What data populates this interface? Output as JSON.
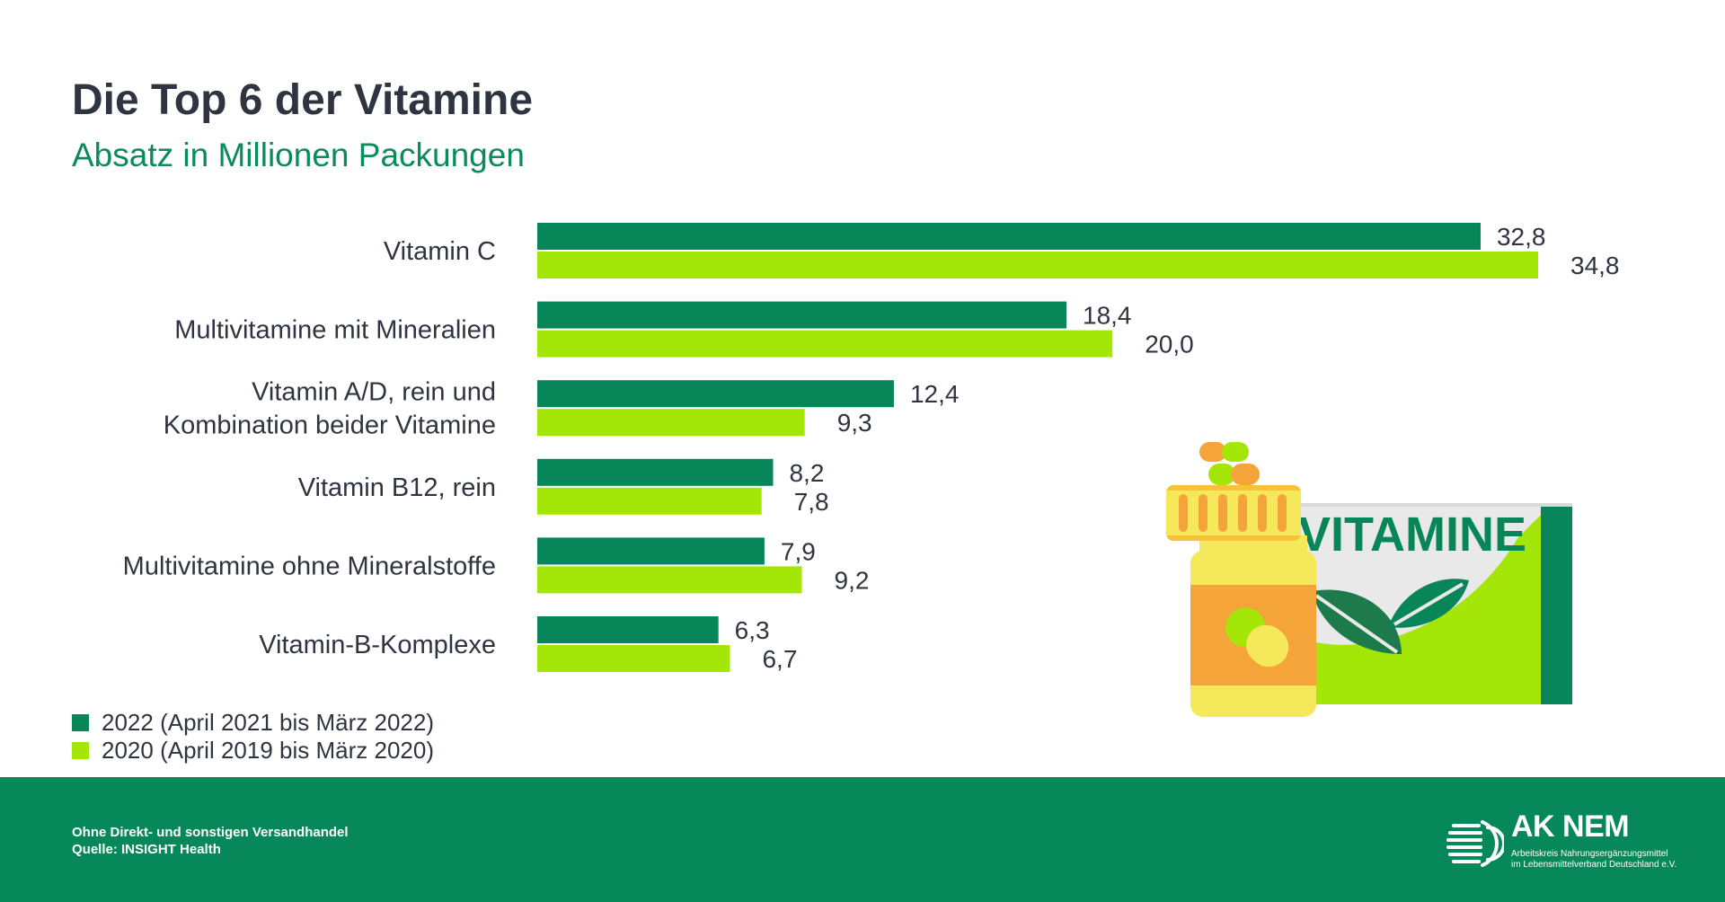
{
  "header": {
    "title": "Die Top 6 der Vitamine",
    "subtitle": "Absatz in Millionen Packungen"
  },
  "chart_data": {
    "type": "bar",
    "orientation": "horizontal",
    "categories": [
      [
        "Vitamin C"
      ],
      [
        "Multivitamine mit Mineralien"
      ],
      [
        "Vitamin A/D, rein und",
        "Kombination beider Vitamine"
      ],
      [
        "Vitamin B12, rein"
      ],
      [
        "Multivitamine ohne Mineralstoffe"
      ],
      [
        "Vitamin-B-Komplexe"
      ]
    ],
    "series": [
      {
        "name": "2022 (April 2021 bis März 2022)",
        "color": "#08865a",
        "values": [
          32.8,
          18.4,
          12.4,
          8.2,
          7.9,
          6.3
        ],
        "labels": [
          "32,8",
          "18,4",
          "12,4",
          "8,2",
          "7,9",
          "6,3"
        ]
      },
      {
        "name": "2020 (April 2019 bis März 2020)",
        "color": "#a3e607",
        "values": [
          34.8,
          20.0,
          9.3,
          7.8,
          9.2,
          6.7
        ],
        "labels": [
          "34,8",
          "20,0",
          "9,3",
          "7,8",
          "9,2",
          "6,7"
        ]
      }
    ],
    "xlim": [
      0,
      34.8
    ],
    "legend_position": "bottom-left",
    "grid": false
  },
  "legend": {
    "items": [
      {
        "label": "2022 (April 2021 bis März 2022)",
        "color": "#08865a"
      },
      {
        "label": "2020 (April 2019 bis März 2020)",
        "color": "#a3e607"
      }
    ]
  },
  "illustration": {
    "box_label": "VITAMINE",
    "icons": [
      "vitamin-bottle-icon",
      "capsule-icon",
      "leaf-icon",
      "vitamine-box-icon"
    ]
  },
  "footer": {
    "note": "Ohne Direkt- und sonstigen Versandhandel",
    "source": "Quelle: INSIGHT Health",
    "logo_title": "AK NEM",
    "logo_sub_1": "Arbeitskreis Nahrungsergänzungsmittel",
    "logo_sub_2": "im Lebensmittelverband Deutschland e.V."
  },
  "colors": {
    "dark_green": "#08865a",
    "lime": "#a3e607",
    "footer_bg": "#06885a",
    "title": "#2e3440"
  }
}
